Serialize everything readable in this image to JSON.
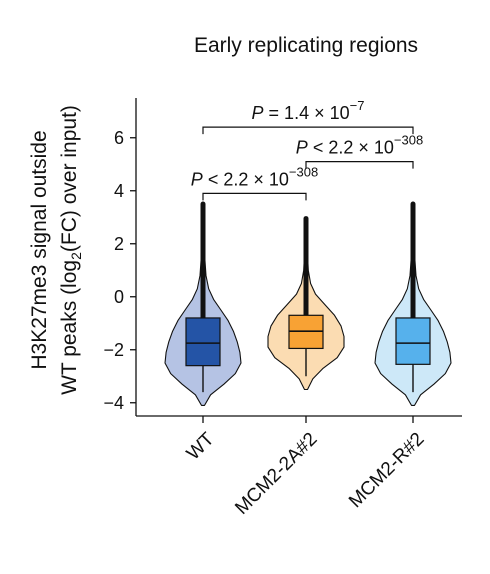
{
  "chart_data": {
    "type": "violin",
    "title": "Early replicating regions",
    "ylabel_line1": "H3K27me3 signal outside",
    "ylabel_line2_pre": "WT peaks (log",
    "ylabel_line2_sub": "2",
    "ylabel_line2_post": "(FC) over input)",
    "xlabel": "",
    "ylim": [
      -4.5,
      7.5
    ],
    "yticks": [
      -4,
      -2,
      0,
      2,
      4,
      6
    ],
    "ytick_labels": [
      "−4",
      "−2",
      "0",
      "2",
      "4",
      "6"
    ],
    "categories": [
      "WT",
      "MCM2-2A#2",
      "MCM2-R#2"
    ],
    "series": [
      {
        "category": "WT",
        "box_color": "#2454a6",
        "violin_color": "#b5c3e4",
        "median": -1.75,
        "q1": -2.6,
        "q3": -0.8,
        "whisker_low": -3.6,
        "whisker_high": 3.5,
        "min": -4.1,
        "max": 3.5,
        "density": [
          [
            -4.1,
            0.04
          ],
          [
            -3.7,
            0.2
          ],
          [
            -3.3,
            0.55
          ],
          [
            -2.9,
            0.85
          ],
          [
            -2.5,
            1.0
          ],
          [
            -2.1,
            0.97
          ],
          [
            -1.7,
            0.9
          ],
          [
            -1.3,
            0.8
          ],
          [
            -0.9,
            0.66
          ],
          [
            -0.5,
            0.47
          ],
          [
            -0.1,
            0.28
          ],
          [
            0.3,
            0.15
          ],
          [
            0.8,
            0.08
          ],
          [
            1.4,
            0.05
          ],
          [
            2.2,
            0.035
          ],
          [
            3.0,
            0.025
          ],
          [
            3.5,
            0.02
          ]
        ]
      },
      {
        "category": "MCM2-2A#2",
        "box_color": "#f8a234",
        "violin_color": "#fbdcb2",
        "median": -1.3,
        "q1": -1.95,
        "q3": -0.7,
        "whisker_low": -3.0,
        "whisker_high": 2.95,
        "min": -3.5,
        "max": 2.95,
        "density": [
          [
            -3.5,
            0.04
          ],
          [
            -3.1,
            0.18
          ],
          [
            -2.7,
            0.45
          ],
          [
            -2.3,
            0.82
          ],
          [
            -1.9,
            1.0
          ],
          [
            -1.5,
            1.0
          ],
          [
            -1.1,
            0.92
          ],
          [
            -0.7,
            0.75
          ],
          [
            -0.3,
            0.5
          ],
          [
            0.1,
            0.25
          ],
          [
            0.5,
            0.12
          ],
          [
            1.0,
            0.06
          ],
          [
            1.6,
            0.04
          ],
          [
            2.3,
            0.03
          ],
          [
            2.95,
            0.02
          ]
        ]
      },
      {
        "category": "MCM2-R#2",
        "box_color": "#56b1ec",
        "violin_color": "#cde8f8",
        "median": -1.75,
        "q1": -2.55,
        "q3": -0.8,
        "whisker_low": -3.6,
        "whisker_high": 3.5,
        "min": -4.1,
        "max": 3.5,
        "density": [
          [
            -4.1,
            0.04
          ],
          [
            -3.7,
            0.2
          ],
          [
            -3.3,
            0.55
          ],
          [
            -2.9,
            0.85
          ],
          [
            -2.5,
            1.0
          ],
          [
            -2.1,
            0.97
          ],
          [
            -1.7,
            0.9
          ],
          [
            -1.3,
            0.8
          ],
          [
            -0.9,
            0.66
          ],
          [
            -0.5,
            0.47
          ],
          [
            -0.1,
            0.28
          ],
          [
            0.3,
            0.15
          ],
          [
            0.8,
            0.08
          ],
          [
            1.4,
            0.05
          ],
          [
            2.2,
            0.035
          ],
          [
            3.0,
            0.025
          ],
          [
            3.5,
            0.02
          ]
        ]
      }
    ],
    "comparisons": [
      {
        "from": "WT",
        "to": "MCM2-R#2",
        "y": 6.4,
        "label_base": "P = 1.4 × 10",
        "label_exp": "−7"
      },
      {
        "from": "MCM2-2A#2",
        "to": "MCM2-R#2",
        "y": 5.1,
        "label_base": "P < 2.2 × 10",
        "label_exp": "−308"
      },
      {
        "from": "WT",
        "to": "MCM2-2A#2",
        "y": 3.9,
        "label_base": "P < 2.2 × 10",
        "label_exp": "−308"
      }
    ]
  }
}
